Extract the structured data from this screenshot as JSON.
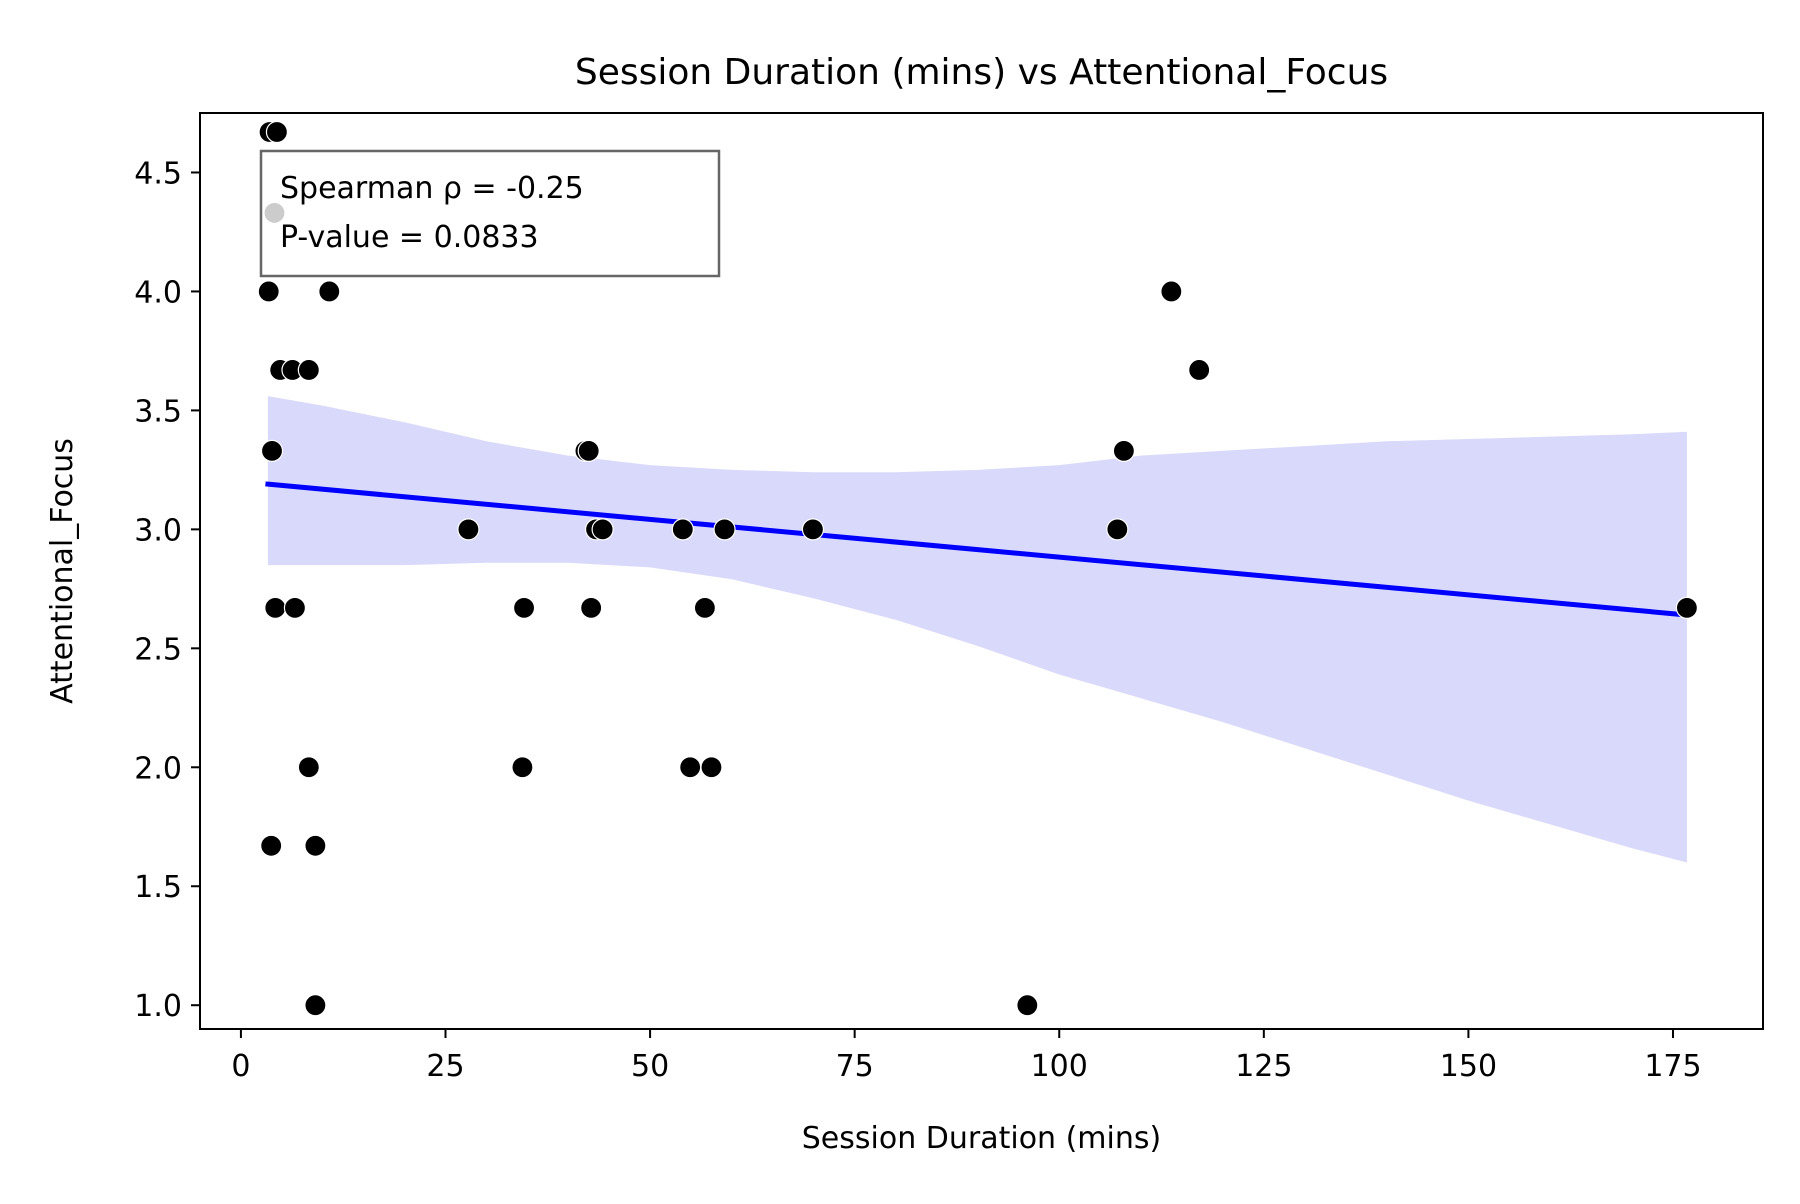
{
  "chart_data": {
    "type": "scatter",
    "title": "Session Duration (mins) vs Attentional_Focus",
    "xlabel": "Session Duration (mins)",
    "ylabel": "Attentional_Focus",
    "xlim": [
      -5,
      186
    ],
    "ylim": [
      0.9,
      4.75
    ],
    "xticks": [
      0,
      25,
      50,
      75,
      100,
      125,
      150,
      175
    ],
    "yticks": [
      1.0,
      1.5,
      2.0,
      2.5,
      3.0,
      3.5,
      4.0,
      4.5
    ],
    "grid": false,
    "annotation": {
      "lines": [
        "Spearman ρ = -0.25",
        "P-value = 0.0833"
      ],
      "placement": "top-left"
    },
    "points_color": "#000000",
    "regression": {
      "color": "#0000ff",
      "band_color": "#d9d9fb",
      "line": [
        [
          3.3,
          3.19
        ],
        [
          176.7,
          2.64
        ]
      ],
      "band_upper": [
        [
          3.3,
          3.56
        ],
        [
          10,
          3.52
        ],
        [
          20,
          3.45
        ],
        [
          30,
          3.37
        ],
        [
          40,
          3.31
        ],
        [
          50,
          3.27
        ],
        [
          60,
          3.25
        ],
        [
          70,
          3.24
        ],
        [
          80,
          3.24
        ],
        [
          90,
          3.25
        ],
        [
          100,
          3.27
        ],
        [
          110,
          3.31
        ],
        [
          120,
          3.33
        ],
        [
          130,
          3.35
        ],
        [
          140,
          3.37
        ],
        [
          150,
          3.38
        ],
        [
          160,
          3.39
        ],
        [
          170,
          3.4
        ],
        [
          176.7,
          3.41
        ]
      ],
      "band_lower": [
        [
          3.3,
          2.85
        ],
        [
          10,
          2.85
        ],
        [
          20,
          2.85
        ],
        [
          30,
          2.86
        ],
        [
          40,
          2.86
        ],
        [
          50,
          2.84
        ],
        [
          60,
          2.79
        ],
        [
          70,
          2.71
        ],
        [
          80,
          2.62
        ],
        [
          90,
          2.51
        ],
        [
          100,
          2.39
        ],
        [
          110,
          2.29
        ],
        [
          120,
          2.19
        ],
        [
          130,
          2.08
        ],
        [
          140,
          1.97
        ],
        [
          150,
          1.86
        ],
        [
          160,
          1.76
        ],
        [
          170,
          1.66
        ],
        [
          176.7,
          1.6
        ]
      ]
    },
    "points": [
      {
        "x": 3.5,
        "y": 4.67
      },
      {
        "x": 4.4,
        "y": 4.67
      },
      {
        "x": 4.1,
        "y": 4.33
      },
      {
        "x": 3.4,
        "y": 4.0
      },
      {
        "x": 10.8,
        "y": 4.0
      },
      {
        "x": 4.8,
        "y": 3.67
      },
      {
        "x": 6.3,
        "y": 3.67
      },
      {
        "x": 8.3,
        "y": 3.67
      },
      {
        "x": 3.8,
        "y": 3.33
      },
      {
        "x": 4.2,
        "y": 2.67
      },
      {
        "x": 6.6,
        "y": 2.67
      },
      {
        "x": 8.3,
        "y": 2.0
      },
      {
        "x": 3.7,
        "y": 1.67
      },
      {
        "x": 9.1,
        "y": 1.67
      },
      {
        "x": 9.1,
        "y": 1.0
      },
      {
        "x": 27.8,
        "y": 3.0
      },
      {
        "x": 34.6,
        "y": 2.67
      },
      {
        "x": 34.4,
        "y": 2.0
      },
      {
        "x": 42.1,
        "y": 3.33
      },
      {
        "x": 42.5,
        "y": 3.33
      },
      {
        "x": 43.4,
        "y": 3.0
      },
      {
        "x": 44.2,
        "y": 3.0
      },
      {
        "x": 42.8,
        "y": 2.67
      },
      {
        "x": 54.0,
        "y": 3.0
      },
      {
        "x": 59.1,
        "y": 3.0
      },
      {
        "x": 56.7,
        "y": 2.67
      },
      {
        "x": 54.9,
        "y": 2.0
      },
      {
        "x": 57.5,
        "y": 2.0
      },
      {
        "x": 69.9,
        "y": 3.0
      },
      {
        "x": 96.1,
        "y": 1.0
      },
      {
        "x": 107.1,
        "y": 3.0
      },
      {
        "x": 107.9,
        "y": 3.33
      },
      {
        "x": 113.7,
        "y": 4.0
      },
      {
        "x": 117.1,
        "y": 3.67
      },
      {
        "x": 176.7,
        "y": 2.67
      }
    ]
  }
}
